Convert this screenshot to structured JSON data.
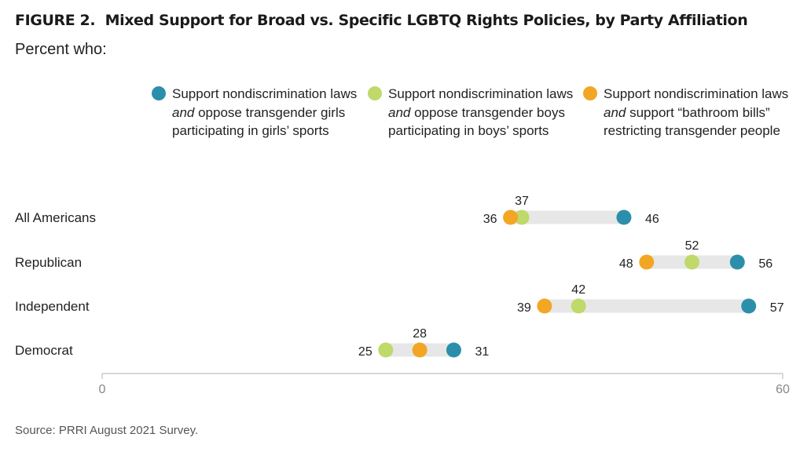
{
  "figure_label": "FIGURE 2.",
  "title": "Mixed Support for Broad vs. Specific LGBTQ Rights Policies, by Party Affiliation",
  "subtitle": "Percent who:",
  "legend": {
    "teal": {
      "pre": "Support nondiscrimination laws ",
      "em": "and",
      "post": " oppose transgender girls participating in girls’ sports"
    },
    "green": {
      "pre": "Support nondiscrimination laws ",
      "em": "and",
      "post": " oppose transgender boys participating in boys’ sports"
    },
    "orange": {
      "pre": "Support nondiscrimination laws ",
      "em": "and",
      "post": " support “bathroom bills” restricting transgender people"
    }
  },
  "source": "Source: PRRI August 2021 Survey.",
  "colors": {
    "teal": "#2b8fab",
    "green": "#bfd96a",
    "orange": "#f2a623",
    "range_bar": "#e7e7e7",
    "axis": "#cccccc"
  },
  "chart_data": {
    "type": "dot-range",
    "categories": [
      "All Americans",
      "Republican",
      "Independent",
      "Democrat"
    ],
    "series": [
      {
        "key": "teal",
        "values": [
          46,
          56,
          57,
          31
        ]
      },
      {
        "key": "green",
        "values": [
          37,
          52,
          42,
          25
        ]
      },
      {
        "key": "orange",
        "values": [
          36,
          48,
          39,
          28
        ]
      }
    ],
    "xlim": [
      0,
      60
    ],
    "ticks": [
      0,
      60
    ],
    "grid": false
  }
}
